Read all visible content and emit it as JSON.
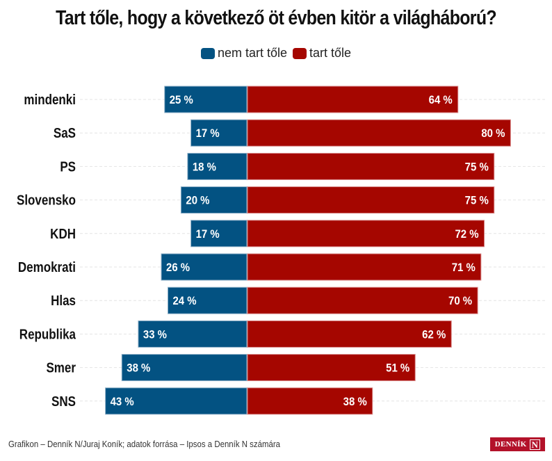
{
  "chart_data": {
    "type": "bar",
    "orientation": "horizontal-diverging",
    "title": "Tart tőle, hogy a következő öt évben kitör a világháború?",
    "categories": [
      "mindenki",
      "SaS",
      "PS",
      "Slovensko",
      "KDH",
      "Demokrati",
      "Hlas",
      "Republika",
      "Smer",
      "SNS"
    ],
    "series": [
      {
        "name": "nem tart tőle",
        "color": "#035282",
        "values": [
          25,
          17,
          18,
          20,
          17,
          26,
          24,
          33,
          38,
          43
        ]
      },
      {
        "name": "tart tőle",
        "color": "#a50600",
        "values": [
          64,
          80,
          75,
          75,
          72,
          71,
          70,
          62,
          51,
          38
        ]
      }
    ],
    "value_suffix": " %",
    "xlabel": "",
    "ylabel": "",
    "legend_position": "top-center",
    "grid": "dashed row guides"
  },
  "footer": {
    "source": "Grafikon – Denník N/Juraj Koník; adatok forrása – Ipsos a Denník N számára",
    "logo_text": "DENNÍK",
    "logo_mark": "N"
  }
}
